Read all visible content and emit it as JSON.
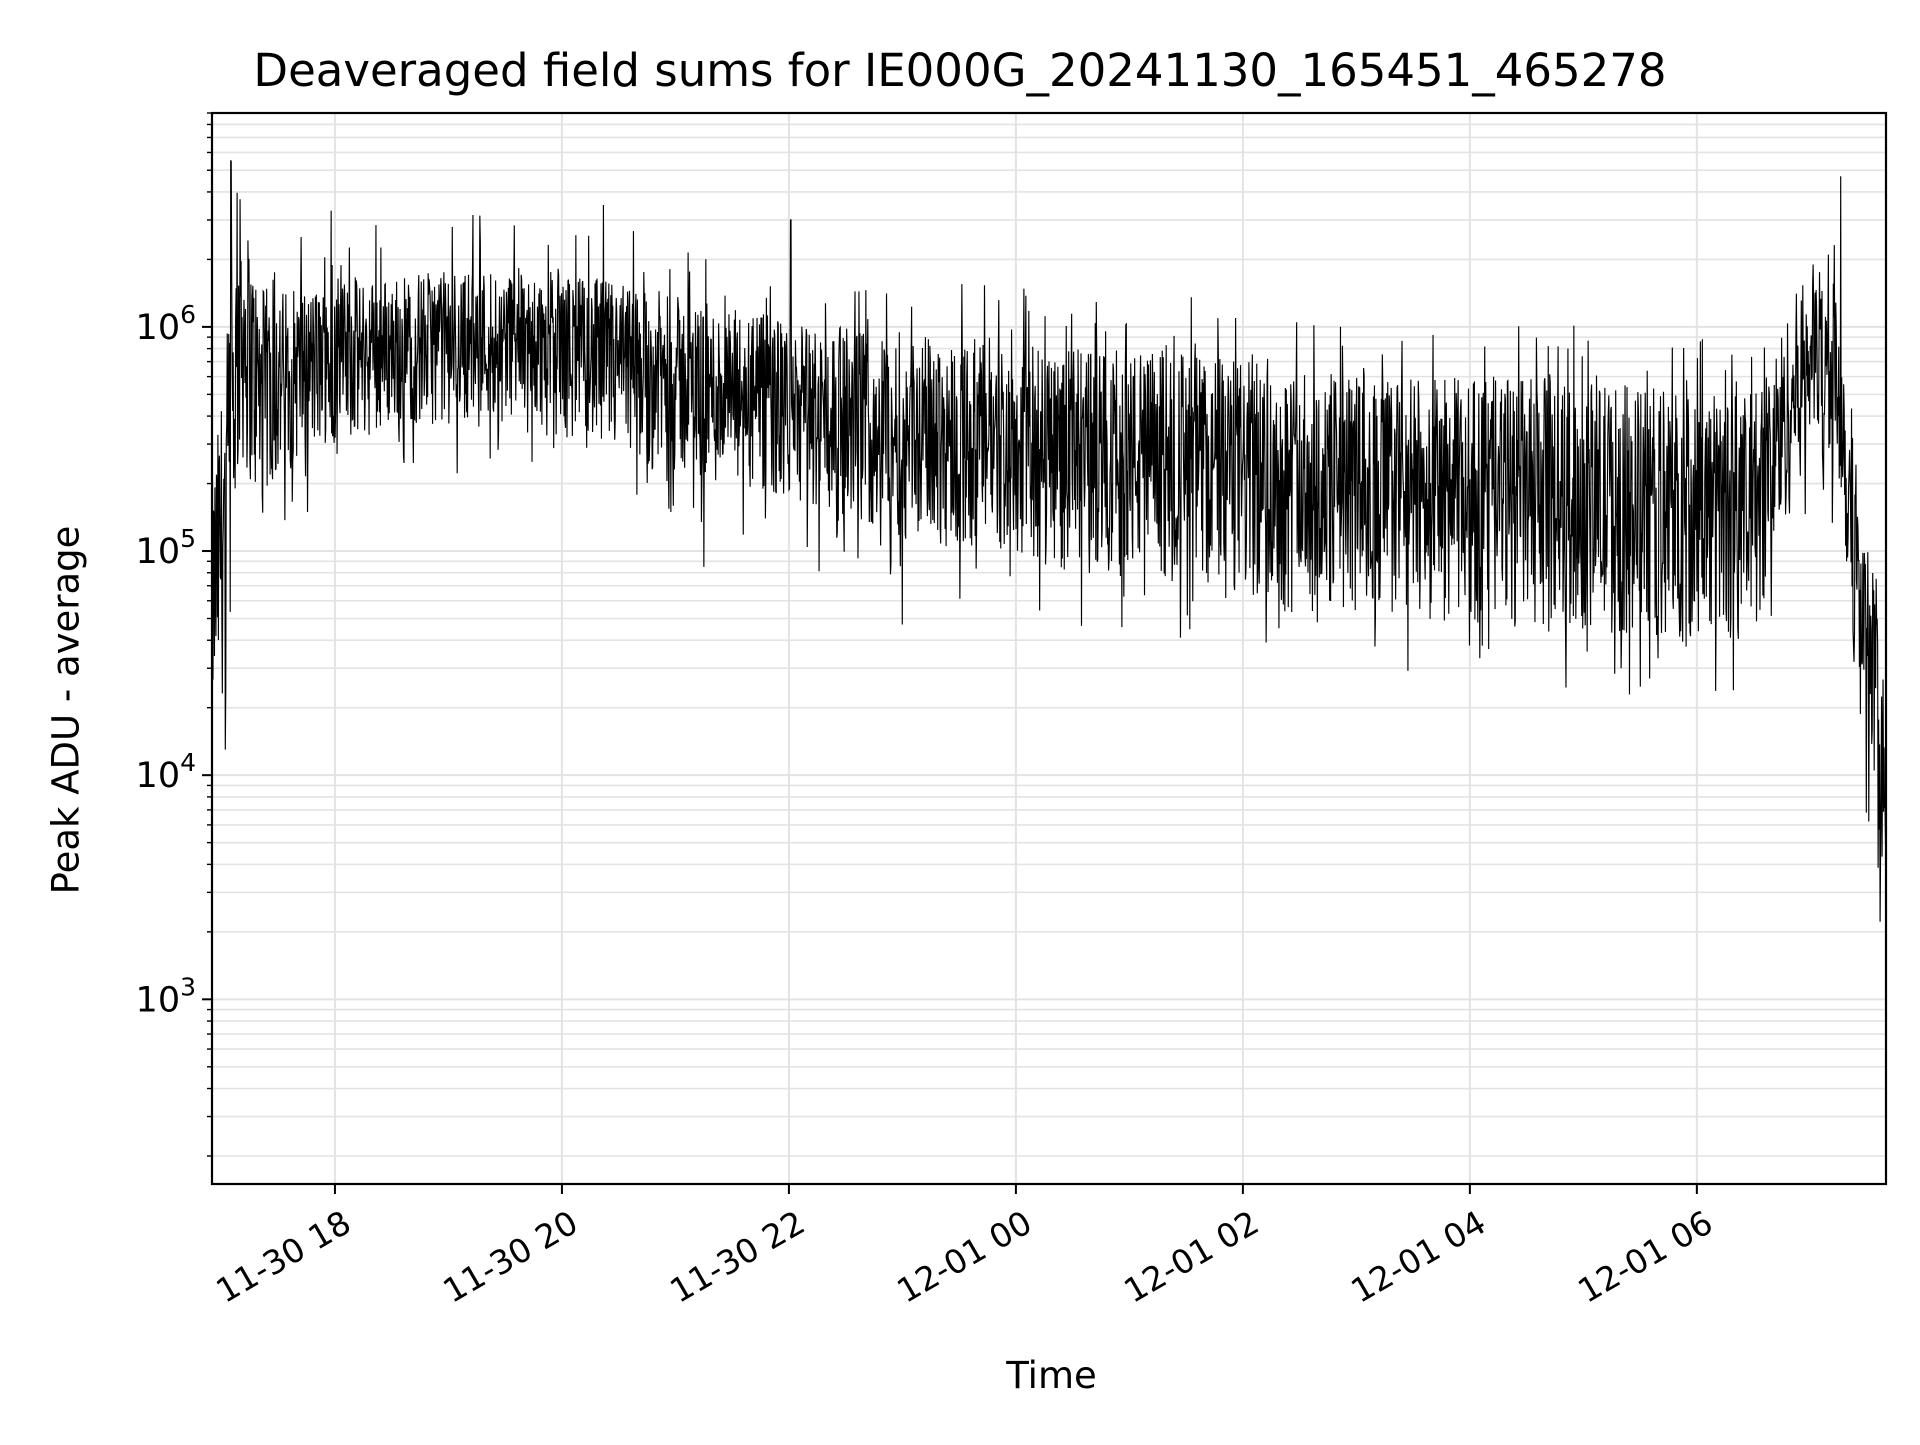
{
  "chart_data": {
    "type": "line",
    "title": "Deaveraged field sums for IE000G_20241130_165451_465278",
    "xlabel": "Time",
    "ylabel": "Peak ADU - average",
    "yscale": "log",
    "ylim": [
      150,
      9000000
    ],
    "xlim": [
      "2024-11-30 16:55",
      "2024-12-01 07:40"
    ],
    "x_ticks": [
      {
        "value": "2024-11-30 18:00",
        "label": "11-30 18"
      },
      {
        "value": "2024-11-30 20:00",
        "label": "11-30 20"
      },
      {
        "value": "2024-11-30 22:00",
        "label": "11-30 22"
      },
      {
        "value": "2024-12-01 00:00",
        "label": "12-01 00"
      },
      {
        "value": "2024-12-01 02:00",
        "label": "12-01 02"
      },
      {
        "value": "2024-12-01 04:00",
        "label": "12-01 04"
      },
      {
        "value": "2024-12-01 06:00",
        "label": "12-01 06"
      }
    ],
    "y_ticks": [
      {
        "value": 1000,
        "base": "10",
        "exp": "3"
      },
      {
        "value": 10000,
        "base": "10",
        "exp": "4"
      },
      {
        "value": 100000,
        "base": "10",
        "exp": "5"
      },
      {
        "value": 1000000,
        "base": "10",
        "exp": "6"
      }
    ],
    "grid": true,
    "series": [
      {
        "color": "#000000",
        "envelope": [
          {
            "x": "2024-11-30 16:55",
            "low": 15000,
            "high": 200000
          },
          {
            "x": "2024-11-30 17:00",
            "low": 20000,
            "high": 500000
          },
          {
            "x": "2024-11-30 17:10",
            "low": 250000,
            "high": 4000000
          },
          {
            "x": "2024-11-30 17:20",
            "low": 150000,
            "high": 1500000
          },
          {
            "x": "2024-11-30 17:40",
            "low": 250000,
            "high": 1500000
          },
          {
            "x": "2024-11-30 18:30",
            "low": 350000,
            "high": 1700000
          },
          {
            "x": "2024-11-30 19:30",
            "low": 400000,
            "high": 1900000
          },
          {
            "x": "2024-11-30 20:30",
            "low": 250000,
            "high": 1600000
          },
          {
            "x": "2024-11-30 21:30",
            "low": 180000,
            "high": 1200000
          },
          {
            "x": "2024-11-30 22:30",
            "low": 130000,
            "high": 1000000
          },
          {
            "x": "2024-11-30 23:30",
            "low": 100000,
            "high": 900000
          },
          {
            "x": "2024-12-01 00:30",
            "low": 80000,
            "high": 800000
          },
          {
            "x": "2024-12-01 01:30",
            "low": 70000,
            "high": 800000
          },
          {
            "x": "2024-12-01 02:30",
            "low": 50000,
            "high": 650000
          },
          {
            "x": "2024-12-01 03:30",
            "low": 50000,
            "high": 600000
          },
          {
            "x": "2024-12-01 04:30",
            "low": 45000,
            "high": 600000
          },
          {
            "x": "2024-12-01 05:30",
            "low": 40000,
            "high": 550000
          },
          {
            "x": "2024-12-01 06:30",
            "low": 40000,
            "high": 500000
          },
          {
            "x": "2024-12-01 07:00",
            "low": 300000,
            "high": 2000000
          },
          {
            "x": "2024-12-01 07:15",
            "low": 200000,
            "high": 1500000
          },
          {
            "x": "2024-12-01 07:25",
            "low": 20000,
            "high": 200000
          },
          {
            "x": "2024-12-01 07:35",
            "low": 5000,
            "high": 60000
          },
          {
            "x": "2024-12-01 07:40",
            "low": 2000,
            "high": 10000
          }
        ],
        "spikes": [
          {
            "x": "2024-11-30 17:05",
            "y": 5500000
          },
          {
            "x": "2024-11-30 17:58",
            "y": 3300000
          },
          {
            "x": "2024-11-30 20:22",
            "y": 3500000
          },
          {
            "x": "2024-11-30 22:01",
            "y": 3000000
          },
          {
            "x": "2024-12-01 07:16",
            "y": 4700000
          },
          {
            "x": "2024-11-30 17:02",
            "y": 13000
          },
          {
            "x": "2024-11-30 21:15",
            "y": 85000
          },
          {
            "x": "2024-11-30 23:00",
            "y": 47000
          },
          {
            "x": "2024-12-01 05:20",
            "y": 30000
          }
        ]
      }
    ]
  }
}
